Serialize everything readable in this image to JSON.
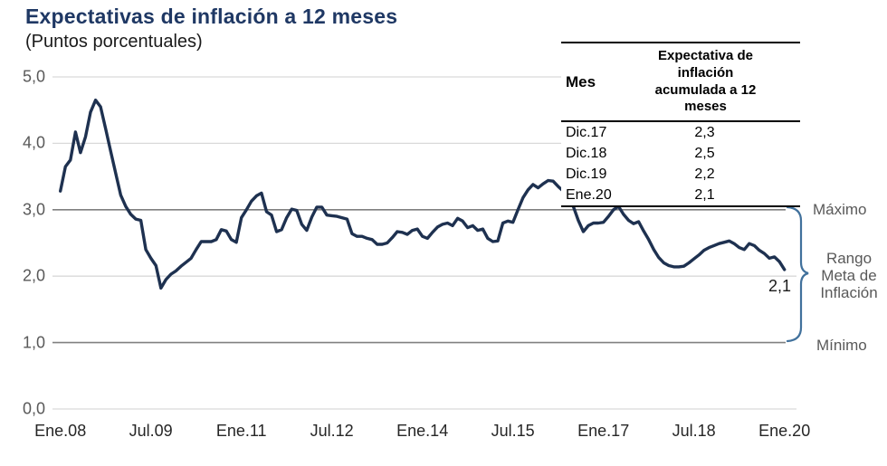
{
  "title": "Expectativas de inflación a 12 meses",
  "subtitle": "(Puntos porcentuales)",
  "colors": {
    "title_text": "#1F3864",
    "series_line": "#1e3150",
    "brace": "#41719C",
    "grid": "#D9D9D9",
    "grid_strong": "#808080",
    "y_axis_text": "#595959",
    "x_axis_text": "#262626"
  },
  "table": {
    "col1_header": "Mes",
    "col2_header_line1": "Expectativa de inflación",
    "col2_header_line2": "acumulada a 12 meses",
    "rows": [
      {
        "mes": "Dic.17",
        "value": "2,3"
      },
      {
        "mes": "Dic.18",
        "value": "2,5"
      },
      {
        "mes": "Dic.19",
        "value": "2,2"
      },
      {
        "mes": "Ene.20",
        "value": "2,1"
      }
    ]
  },
  "annotations": {
    "maximo": "Máximo",
    "rango_line1": "Rango",
    "rango_line2": "Meta de",
    "rango_line3": "Inflación",
    "minimo": "Mínimo",
    "last_value": "2,1"
  },
  "chart_data": {
    "type": "line",
    "title": "Expectativas de inflación a 12 meses",
    "ylabel": "Puntos porcentuales",
    "ylim": [
      0,
      5
    ],
    "x_range": [
      "Ene.08",
      "Ene.20"
    ],
    "frequency": "monthly",
    "grid": true,
    "y_ticks": [
      {
        "label": "0,0",
        "value": 0
      },
      {
        "label": "1,0",
        "value": 1
      },
      {
        "label": "2,0",
        "value": 2
      },
      {
        "label": "3,0",
        "value": 3
      },
      {
        "label": "4,0",
        "value": 4
      },
      {
        "label": "5,0",
        "value": 5
      }
    ],
    "x_ticks": [
      {
        "label": "Ene.08",
        "month": 0
      },
      {
        "label": "Jul.09",
        "month": 18
      },
      {
        "label": "Ene.11",
        "month": 36
      },
      {
        "label": "Jul.12",
        "month": 54
      },
      {
        "label": "Ene.14",
        "month": 72
      },
      {
        "label": "Jul.15",
        "month": 90
      },
      {
        "label": "Ene.17",
        "month": 108
      },
      {
        "label": "Jul.18",
        "month": 126
      },
      {
        "label": "Ene.20",
        "month": 144
      }
    ],
    "reference_lines": [
      {
        "name": "Máximo",
        "value": 3.0
      },
      {
        "name": "Mínimo",
        "value": 1.0
      }
    ],
    "last_point_label": "2,1",
    "series": [
      {
        "name": "Expectativa de inflación acumulada a 12 meses",
        "start": "Ene.08",
        "values": [
          3.28,
          3.65,
          3.75,
          4.17,
          3.86,
          4.1,
          4.47,
          4.65,
          4.55,
          4.22,
          3.88,
          3.55,
          3.22,
          3.05,
          2.93,
          2.86,
          2.84,
          2.4,
          2.27,
          2.16,
          1.82,
          1.95,
          2.03,
          2.08,
          2.15,
          2.21,
          2.27,
          2.4,
          2.52,
          2.52,
          2.52,
          2.55,
          2.7,
          2.68,
          2.55,
          2.51,
          2.88,
          3.0,
          3.13,
          3.21,
          3.25,
          2.97,
          2.92,
          2.67,
          2.7,
          2.88,
          3.01,
          2.99,
          2.78,
          2.69,
          2.89,
          3.04,
          3.04,
          2.92,
          2.91,
          2.9,
          2.88,
          2.86,
          2.64,
          2.6,
          2.6,
          2.57,
          2.55,
          2.48,
          2.48,
          2.5,
          2.58,
          2.67,
          2.66,
          2.63,
          2.69,
          2.71,
          2.6,
          2.57,
          2.66,
          2.74,
          2.78,
          2.8,
          2.76,
          2.87,
          2.83,
          2.73,
          2.76,
          2.69,
          2.71,
          2.57,
          2.52,
          2.53,
          2.8,
          2.83,
          2.81,
          3.0,
          3.18,
          3.3,
          3.38,
          3.33,
          3.39,
          3.44,
          3.43,
          3.35,
          3.28,
          3.22,
          3.05,
          2.84,
          2.67,
          2.76,
          2.8,
          2.8,
          2.81,
          2.9,
          3.0,
          3.05,
          2.93,
          2.84,
          2.79,
          2.82,
          2.68,
          2.55,
          2.4,
          2.28,
          2.2,
          2.16,
          2.14,
          2.14,
          2.15,
          2.2,
          2.26,
          2.32,
          2.39,
          2.43,
          2.46,
          2.49,
          2.51,
          2.53,
          2.49,
          2.43,
          2.4,
          2.49,
          2.46,
          2.39,
          2.34,
          2.27,
          2.29,
          2.22,
          2.1
        ]
      }
    ]
  }
}
